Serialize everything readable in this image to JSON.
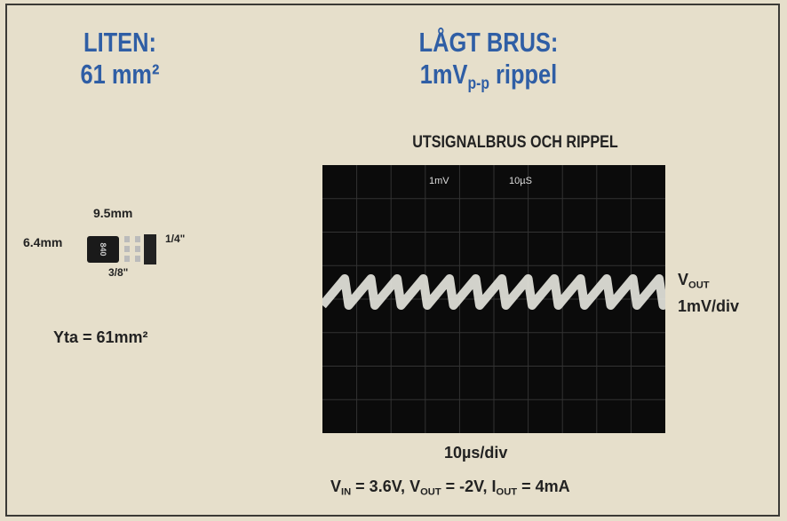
{
  "left": {
    "title": [
      "LITEN:",
      "61 mm²"
    ],
    "dimensions": {
      "width": "9.5mm",
      "height": "6.4mm",
      "height_in": "1/4\"",
      "width_in": "3/8\"",
      "chip_marking": "840"
    },
    "area": "Yta = 61mm²"
  },
  "right": {
    "title_line1": "LÅGT BRUS:",
    "title_line2": [
      {
        "text": "1mV"
      },
      {
        "sub": "p-p"
      },
      {
        "text": " rippel"
      }
    ],
    "scope_title": "UTSIGNALBRUS OCH RIPPEL",
    "scope_labels": [
      "1mV",
      "10µS"
    ],
    "trace_label": [
      {
        "text": "V"
      },
      {
        "sub": "OUT"
      }
    ],
    "trace_scale": "1mV/div",
    "time_label": "10µs/div",
    "conditions": [
      {
        "text": "V"
      },
      {
        "sub": "IN"
      },
      {
        "text": " = 3.6V, V"
      },
      {
        "sub": "OUT"
      },
      {
        "text": " = -2V, I"
      },
      {
        "sub": "OUT"
      },
      {
        "text": " = 4mA"
      }
    ]
  }
}
